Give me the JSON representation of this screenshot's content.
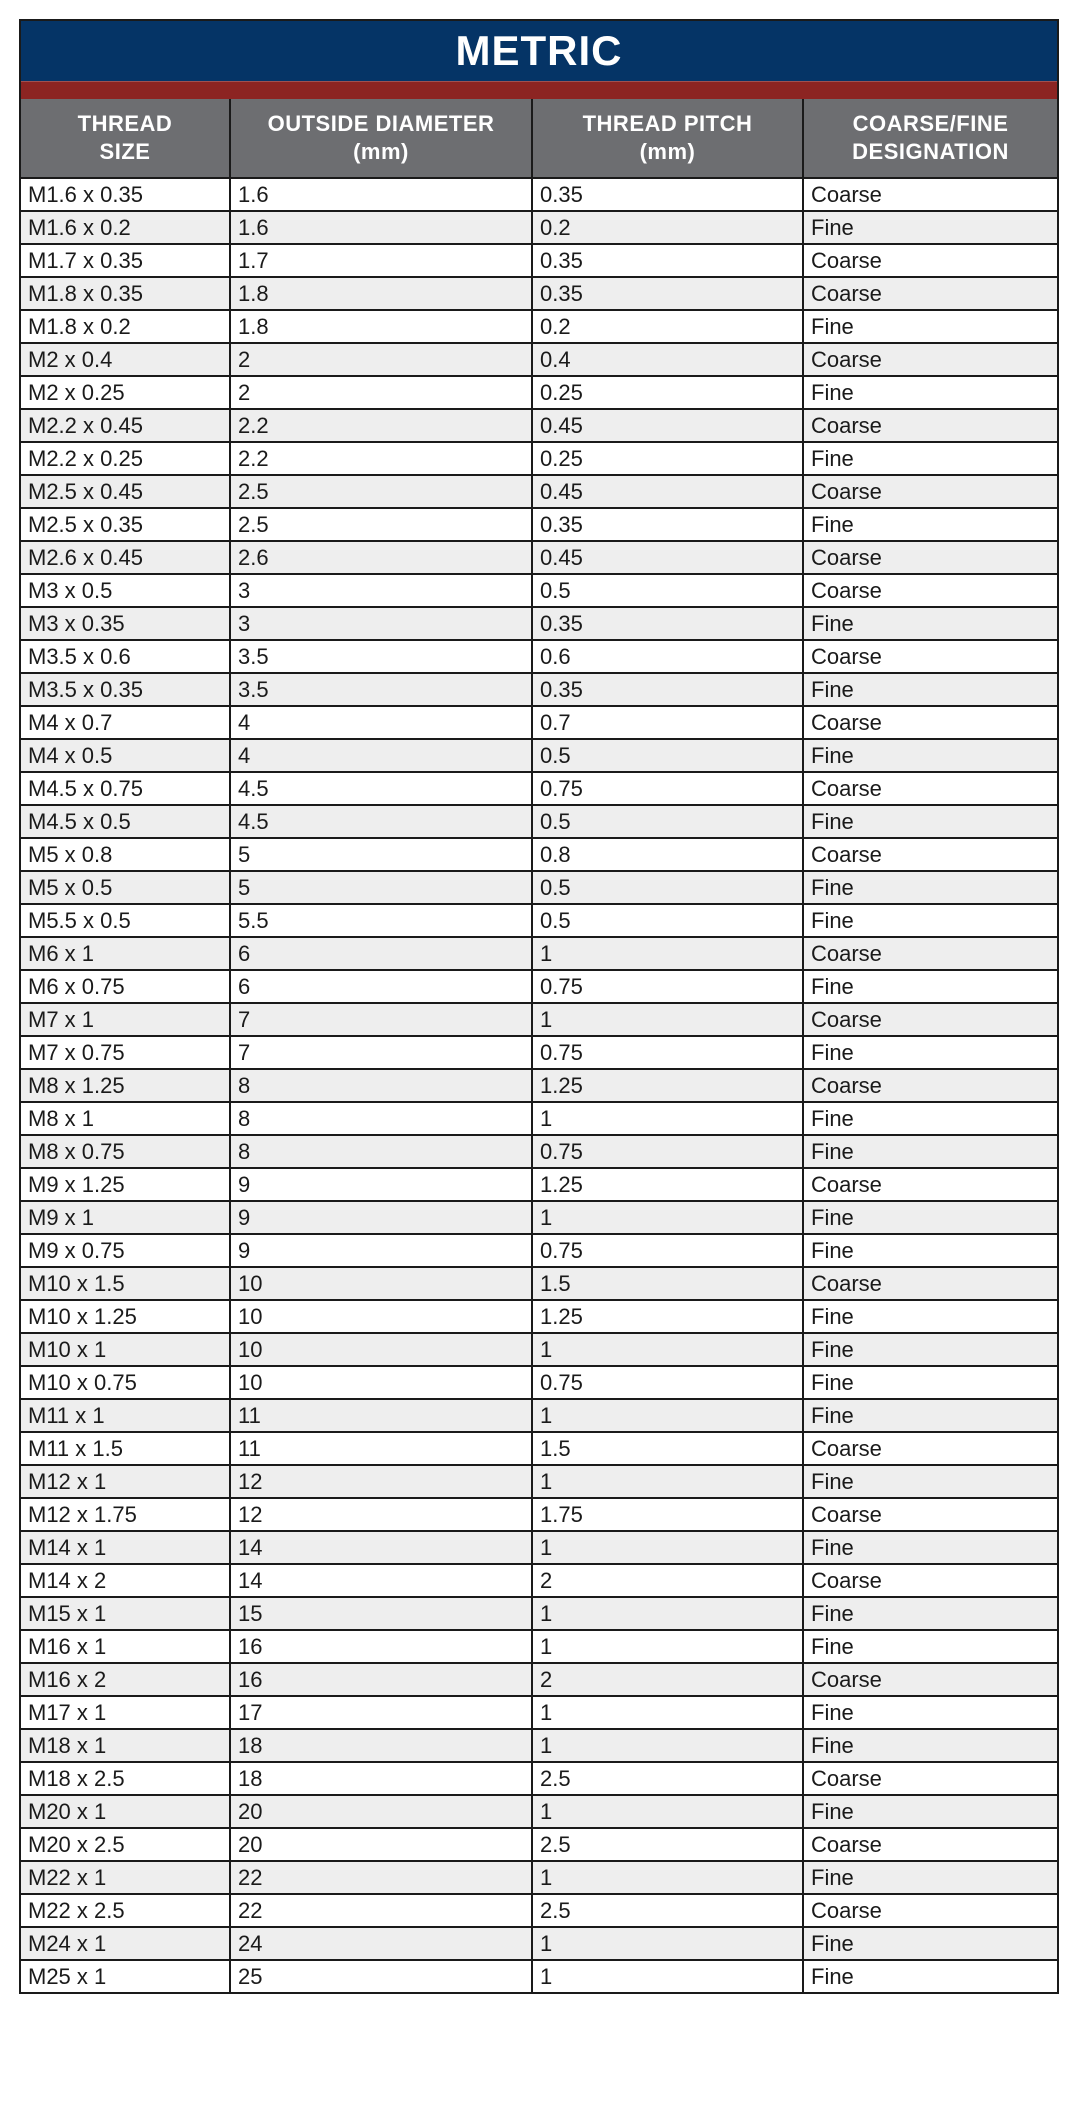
{
  "title": "METRIC",
  "colors": {
    "title_bg": "#053466",
    "accent_band": "#8c2422",
    "header_bg": "#6d6e71",
    "alt_row": "#eeeeee"
  },
  "headers": [
    {
      "line1": "THREAD",
      "line2": "SIZE"
    },
    {
      "line1": "OUTSIDE DIAMETER",
      "line2": "(mm)"
    },
    {
      "line1": "THREAD PITCH",
      "line2": "(mm)"
    },
    {
      "line1": "COARSE/FINE",
      "line2": "DESIGNATION"
    }
  ],
  "rows": [
    [
      "M1.6 x 0.35",
      "1.6",
      "0.35",
      "Coarse"
    ],
    [
      "M1.6 x 0.2",
      "1.6",
      "0.2",
      "Fine"
    ],
    [
      "M1.7 x 0.35",
      "1.7",
      "0.35",
      "Coarse"
    ],
    [
      "M1.8 x 0.35",
      "1.8",
      "0.35",
      "Coarse"
    ],
    [
      "M1.8 x 0.2",
      "1.8",
      "0.2",
      "Fine"
    ],
    [
      "M2 x 0.4",
      "2",
      "0.4",
      "Coarse"
    ],
    [
      "M2 x 0.25",
      "2",
      "0.25",
      "Fine"
    ],
    [
      "M2.2 x 0.45",
      "2.2",
      "0.45",
      "Coarse"
    ],
    [
      "M2.2 x 0.25",
      "2.2",
      "0.25",
      "Fine"
    ],
    [
      "M2.5 x 0.45",
      "2.5",
      "0.45",
      "Coarse"
    ],
    [
      "M2.5 x 0.35",
      "2.5",
      "0.35",
      "Fine"
    ],
    [
      "M2.6 x 0.45",
      "2.6",
      "0.45",
      "Coarse"
    ],
    [
      "M3 x 0.5",
      "3",
      "0.5",
      "Coarse"
    ],
    [
      "M3 x 0.35",
      "3",
      "0.35",
      "Fine"
    ],
    [
      "M3.5 x 0.6",
      "3.5",
      "0.6",
      "Coarse"
    ],
    [
      "M3.5 x 0.35",
      "3.5",
      "0.35",
      "Fine"
    ],
    [
      "M4 x 0.7",
      "4",
      "0.7",
      "Coarse"
    ],
    [
      "M4 x 0.5",
      "4",
      "0.5",
      "Fine"
    ],
    [
      "M4.5 x 0.75",
      "4.5",
      "0.75",
      "Coarse"
    ],
    [
      "M4.5 x 0.5",
      "4.5",
      "0.5",
      "Fine"
    ],
    [
      "M5 x 0.8",
      "5",
      "0.8",
      "Coarse"
    ],
    [
      "M5 x 0.5",
      "5",
      "0.5",
      "Fine"
    ],
    [
      "M5.5 x 0.5",
      "5.5",
      "0.5",
      "Fine"
    ],
    [
      "M6 x 1",
      "6",
      "1",
      "Coarse"
    ],
    [
      "M6 x 0.75",
      "6",
      "0.75",
      "Fine"
    ],
    [
      "M7 x 1",
      "7",
      "1",
      "Coarse"
    ],
    [
      "M7 x 0.75",
      "7",
      "0.75",
      "Fine"
    ],
    [
      "M8 x 1.25",
      "8",
      "1.25",
      "Coarse"
    ],
    [
      "M8 x 1",
      "8",
      "1",
      "Fine"
    ],
    [
      "M8 x 0.75",
      "8",
      "0.75",
      "Fine"
    ],
    [
      "M9 x 1.25",
      "9",
      "1.25",
      "Coarse"
    ],
    [
      "M9 x 1",
      "9",
      "1",
      "Fine"
    ],
    [
      "M9 x 0.75",
      "9",
      "0.75",
      "Fine"
    ],
    [
      "M10 x 1.5",
      "10",
      "1.5",
      "Coarse"
    ],
    [
      "M10 x 1.25",
      "10",
      "1.25",
      "Fine"
    ],
    [
      "M10 x 1",
      "10",
      "1",
      "Fine"
    ],
    [
      "M10 x 0.75",
      "10",
      "0.75",
      "Fine"
    ],
    [
      "M11 x 1",
      "11",
      "1",
      "Fine"
    ],
    [
      "M11 x 1.5",
      "11",
      "1.5",
      "Coarse"
    ],
    [
      "M12 x 1",
      "12",
      "1",
      "Fine"
    ],
    [
      "M12 x 1.75",
      "12",
      "1.75",
      "Coarse"
    ],
    [
      "M14 x 1",
      "14",
      "1",
      "Fine"
    ],
    [
      "M14 x 2",
      "14",
      "2",
      "Coarse"
    ],
    [
      "M15 x 1",
      "15",
      "1",
      "Fine"
    ],
    [
      "M16 x 1",
      "16",
      "1",
      "Fine"
    ],
    [
      "M16 x 2",
      "16",
      "2",
      "Coarse"
    ],
    [
      "M17 x 1",
      "17",
      "1",
      "Fine"
    ],
    [
      "M18 x 1",
      "18",
      "1",
      "Fine"
    ],
    [
      "M18 x 2.5",
      "18",
      "2.5",
      "Coarse"
    ],
    [
      "M20 x 1",
      "20",
      "1",
      "Fine"
    ],
    [
      "M20 x 2.5",
      "20",
      "2.5",
      "Coarse"
    ],
    [
      "M22 x 1",
      "22",
      "1",
      "Fine"
    ],
    [
      "M22 x 2.5",
      "22",
      "2.5",
      "Coarse"
    ],
    [
      "M24 x 1",
      "24",
      "1",
      "Fine"
    ],
    [
      "M25 x 1",
      "25",
      "1",
      "Fine"
    ]
  ]
}
